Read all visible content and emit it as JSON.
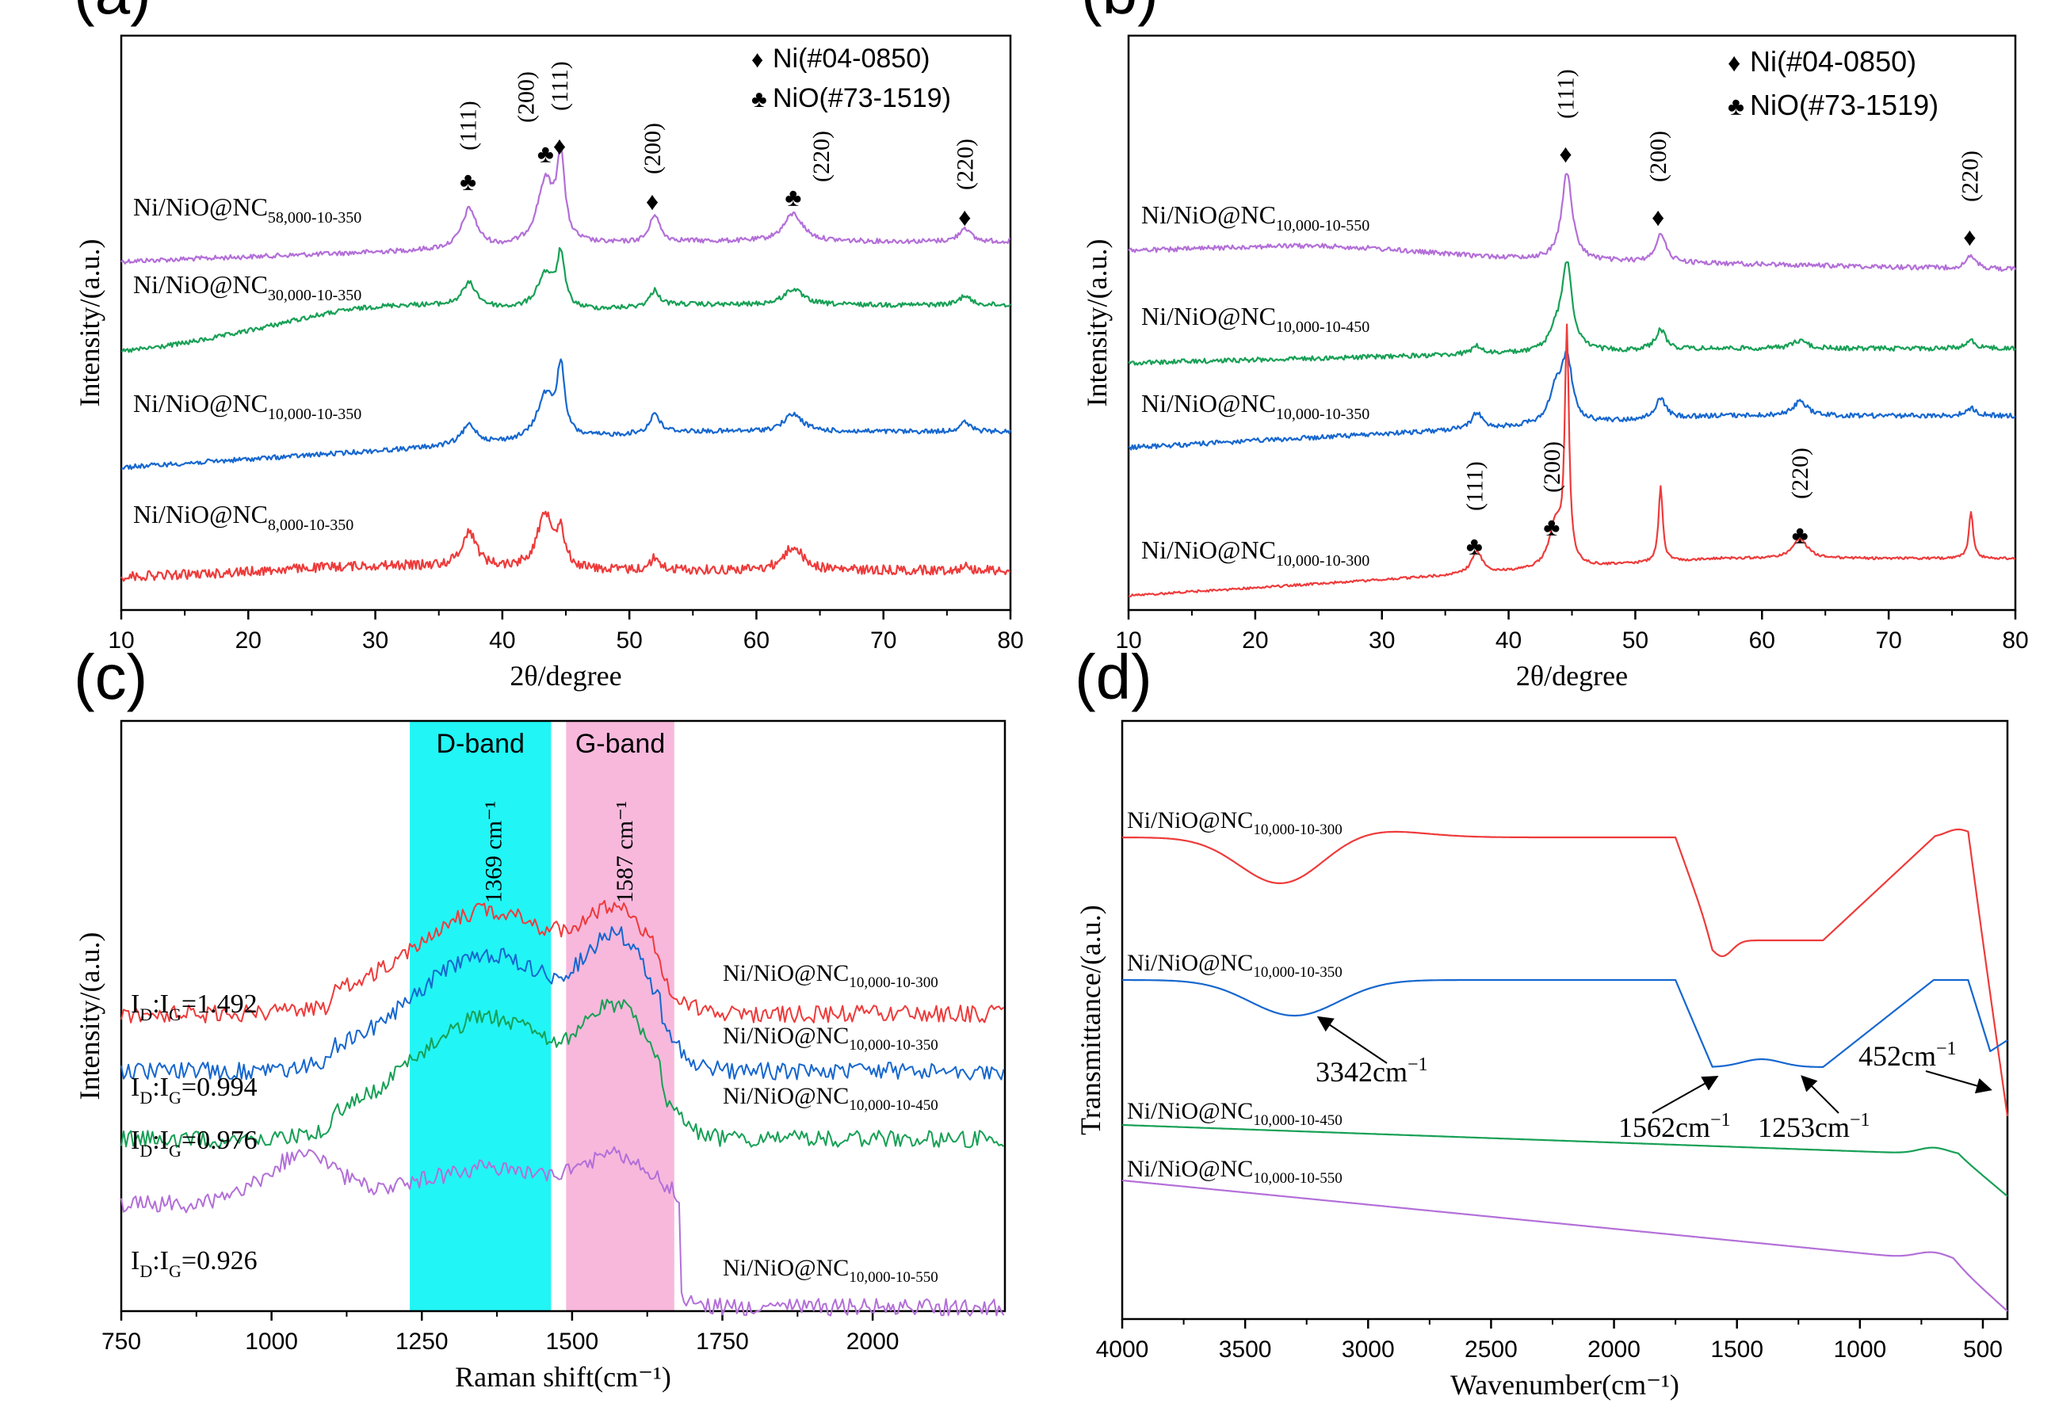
{
  "chart_data": [
    {
      "panel": "(a)",
      "type": "line",
      "xlabel": "2θ/degree",
      "ylabel": "Intensity/(a.u.)",
      "xlim": [
        10,
        80
      ],
      "xticks": [
        10,
        20,
        30,
        40,
        50,
        60,
        70,
        80
      ],
      "legend": [
        {
          "symbol": "♦",
          "text": "Ni(#04-0850)"
        },
        {
          "symbol": "♣",
          "text": "NiO(#73-1519)"
        }
      ],
      "series": [
        {
          "name": "Ni/NiO@NC",
          "sub": "58,000-10-350",
          "color": "#b36fd8"
        },
        {
          "name": "Ni/NiO@NC",
          "sub": "30,000-10-350",
          "color": "#17a055"
        },
        {
          "name": "Ni/NiO@NC",
          "sub": "10,000-10-350",
          "color": "#1667cf"
        },
        {
          "name": "Ni/NiO@NC",
          "sub": "8,000-10-350",
          "color": "#ee3b3b"
        }
      ],
      "peaks": [
        {
          "x": 37.3,
          "symbol": "♣",
          "label": "(111)"
        },
        {
          "x": 43.4,
          "symbol": "♣",
          "label": "(200)"
        },
        {
          "x": 44.5,
          "symbol": "♦",
          "label": "(111)"
        },
        {
          "x": 51.8,
          "symbol": "♦",
          "label": "(200)"
        },
        {
          "x": 62.9,
          "symbol": "♣",
          "label": "(220)"
        },
        {
          "x": 76.4,
          "symbol": "♦",
          "label": "(220)"
        }
      ]
    },
    {
      "panel": "(b)",
      "type": "line",
      "xlabel": "2θ/degree",
      "ylabel": "Intensity/(a.u.)",
      "xlim": [
        10,
        80
      ],
      "xticks": [
        10,
        20,
        30,
        40,
        50,
        60,
        70,
        80
      ],
      "legend": [
        {
          "symbol": "♦",
          "text": "Ni(#04-0850)"
        },
        {
          "symbol": "♣",
          "text": "NiO(#73-1519)"
        }
      ],
      "series": [
        {
          "name": "Ni/NiO@NC",
          "sub": "10,000-10-550",
          "color": "#b36fd8"
        },
        {
          "name": "Ni/NiO@NC",
          "sub": "10,000-10-450",
          "color": "#17a055"
        },
        {
          "name": "Ni/NiO@NC",
          "sub": "10,000-10-350",
          "color": "#1667cf"
        },
        {
          "name": "Ni/NiO@NC",
          "sub": "10,000-10-300",
          "color": "#ee3b3b"
        }
      ],
      "peaks_top": [
        {
          "x": 44.5,
          "symbol": "♦",
          "label": "(111)"
        },
        {
          "x": 51.8,
          "symbol": "♦",
          "label": "(200)"
        },
        {
          "x": 76.4,
          "symbol": "♦",
          "label": "(220)"
        }
      ],
      "peaks_bottom": [
        {
          "x": 37.3,
          "symbol": "♣",
          "label": "(111)"
        },
        {
          "x": 43.4,
          "symbol": "♣",
          "label": "(200)"
        },
        {
          "x": 63.0,
          "symbol": "♣",
          "label": "(220)"
        }
      ]
    },
    {
      "panel": "(c)",
      "type": "line",
      "xlabel": "Raman shift(cm⁻¹)",
      "ylabel": "Intensity/(a.u.)",
      "xlim": [
        750,
        2220
      ],
      "xticks": [
        750,
        1000,
        1250,
        1500,
        1750,
        2000
      ],
      "bands": [
        {
          "name": "D-band",
          "from": 1230,
          "to": 1465,
          "color": "#22f5f5",
          "peak_label": "1369 cm⁻¹",
          "peak": 1369
        },
        {
          "name": "G-band",
          "from": 1490,
          "to": 1670,
          "color": "#f7b8dc",
          "peak_label": "1587 cm⁻¹",
          "peak": 1587
        }
      ],
      "series": [
        {
          "name": "Ni/NiO@NC",
          "sub": "10,000-10-300",
          "color": "#ee3b3b",
          "ratio_label": "I",
          "ratio_d": "D",
          "ratio_mid": ":I",
          "ratio_g": "G",
          "ratio_value": "=1.492",
          "ratio": 1.492
        },
        {
          "name": "Ni/NiO@NC",
          "sub": "10,000-10-350",
          "color": "#1667cf",
          "ratio_label": "I",
          "ratio_d": "D",
          "ratio_mid": ":I",
          "ratio_g": "G",
          "ratio_value": "=0.994",
          "ratio": 0.994
        },
        {
          "name": "Ni/NiO@NC",
          "sub": "10,000-10-450",
          "color": "#17a055",
          "ratio_label": "I",
          "ratio_d": "D",
          "ratio_mid": ":I",
          "ratio_g": "G",
          "ratio_value": "=0.976",
          "ratio": 0.976
        },
        {
          "name": "Ni/NiO@NC",
          "sub": "10,000-10-550",
          "color": "#b36fd8",
          "ratio_label": "I",
          "ratio_d": "D",
          "ratio_mid": ":I",
          "ratio_g": "G",
          "ratio_value": "=0.926",
          "ratio": 0.926
        }
      ]
    },
    {
      "panel": "(d)",
      "type": "line",
      "xlabel": "Wavenumber(cm⁻¹)",
      "ylabel": "Transmittance/(a.u.)",
      "xlim": [
        4000,
        400
      ],
      "xticks": [
        4000,
        3500,
        3000,
        2500,
        2000,
        1500,
        1000,
        500
      ],
      "series": [
        {
          "name": "Ni/NiO@NC",
          "sub": "10,000-10-300",
          "color": "#ee3b3b"
        },
        {
          "name": "Ni/NiO@NC",
          "sub": "10,000-10-350",
          "color": "#1667cf"
        },
        {
          "name": "Ni/NiO@NC",
          "sub": "10,000-10-450",
          "color": "#17a055"
        },
        {
          "name": "Ni/NiO@NC",
          "sub": "10,000-10-550",
          "color": "#b36fd8"
        }
      ],
      "annotations": [
        {
          "text": "3342cm",
          "sup": "−1",
          "x": 3342
        },
        {
          "text": "1562cm",
          "sup": "−1",
          "x": 1562
        },
        {
          "text": "1253cm",
          "sup": "−1",
          "x": 1253
        },
        {
          "text": "452cm",
          "sup": "−1",
          "x": 452
        }
      ]
    }
  ]
}
